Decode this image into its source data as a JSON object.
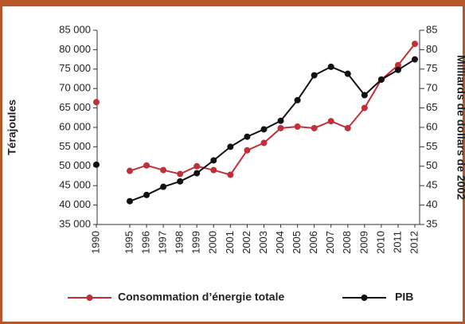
{
  "chart_data": {
    "type": "line",
    "ylabel": "Térajoules",
    "y2label": "Milliards de dollars de 2002",
    "categories": [
      "1990",
      "1995",
      "1996",
      "1997",
      "1998",
      "1999",
      "2000",
      "2001",
      "2002",
      "2003",
      "2004",
      "2005",
      "2006",
      "2007",
      "2008",
      "2009",
      "2010",
      "2011",
      "2012"
    ],
    "series": [
      {
        "name": "Consommation d’énergie totale",
        "color": "#c0303a",
        "axis": "y",
        "values": [
          66500,
          48800,
          50200,
          49000,
          48000,
          50000,
          49000,
          47800,
          54100,
          56000,
          59800,
          60200,
          59800,
          61600,
          59800,
          65000,
          72300,
          76000,
          81500
        ]
      },
      {
        "name": "PIB",
        "color": "#111111",
        "axis": "y2",
        "values": [
          50.4,
          41,
          42.6,
          44.7,
          46.1,
          48.2,
          51.5,
          55,
          57.6,
          59.5,
          61.7,
          67,
          73.4,
          75.6,
          73.8,
          68.3,
          72.3,
          74.8,
          77.5
        ]
      }
    ],
    "ylim": [
      35000,
      85000
    ],
    "yticks": [
      {
        "value": 35000,
        "label": "35 000"
      },
      {
        "value": 40000,
        "label": "40 000"
      },
      {
        "value": 45000,
        "label": "45 000"
      },
      {
        "value": 50000,
        "label": "50 000"
      },
      {
        "value": 55000,
        "label": "55 000"
      },
      {
        "value": 60000,
        "label": "60 000"
      },
      {
        "value": 65000,
        "label": "65 000"
      },
      {
        "value": 70000,
        "label": "70 000"
      },
      {
        "value": 75000,
        "label": "75 000"
      },
      {
        "value": 80000,
        "label": "80 000"
      },
      {
        "value": 85000,
        "label": "85 000"
      }
    ],
    "y2lim": [
      35,
      85
    ],
    "y2ticks": [
      35,
      40,
      45,
      50,
      55,
      60,
      65,
      70,
      75,
      80,
      85
    ],
    "legend": "bottom"
  }
}
